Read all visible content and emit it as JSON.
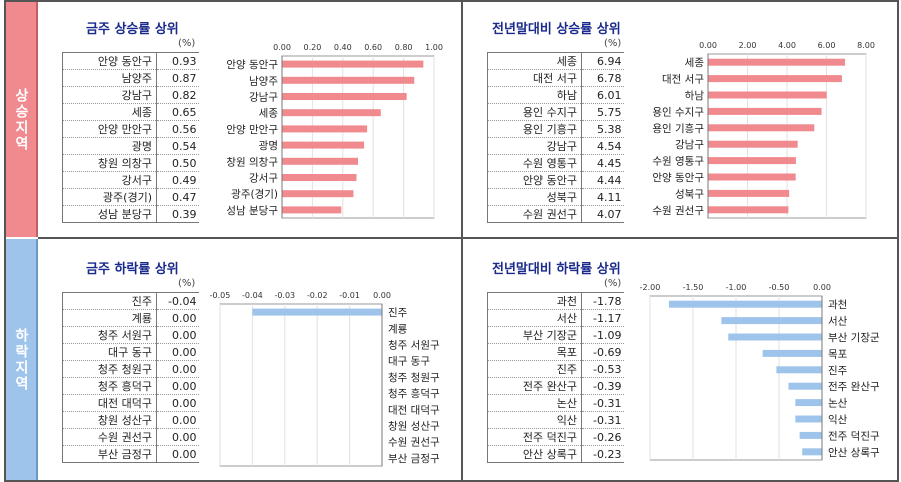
{
  "sections": {
    "rise_label": "상승지역",
    "fall_label": "하락지역"
  },
  "panels": {
    "weekly_rise": {
      "title": "금주 상승률 상위",
      "unit": "(%)",
      "rows": [
        {
          "name": "안양 동안구",
          "value": "0.93"
        },
        {
          "name": "남양주",
          "value": "0.87"
        },
        {
          "name": "강남구",
          "value": "0.82"
        },
        {
          "name": "세종",
          "value": "0.65"
        },
        {
          "name": "안양 만안구",
          "value": "0.56"
        },
        {
          "name": "광명",
          "value": "0.54"
        },
        {
          "name": "창원 의창구",
          "value": "0.50"
        },
        {
          "name": "강서구",
          "value": "0.49"
        },
        {
          "name": "광주(경기)",
          "value": "0.47"
        },
        {
          "name": "성남 분당구",
          "value": "0.39"
        }
      ]
    },
    "annual_rise": {
      "title": "전년말대비 상승률 상위",
      "unit": "(%)",
      "rows": [
        {
          "name": "세종",
          "value": "6.94"
        },
        {
          "name": "대전 서구",
          "value": "6.78"
        },
        {
          "name": "하남",
          "value": "6.01"
        },
        {
          "name": "용인 수지구",
          "value": "5.75"
        },
        {
          "name": "용인 기흥구",
          "value": "5.38"
        },
        {
          "name": "강남구",
          "value": "4.54"
        },
        {
          "name": "수원 영통구",
          "value": "4.45"
        },
        {
          "name": "안양 동안구",
          "value": "4.44"
        },
        {
          "name": "성북구",
          "value": "4.11"
        },
        {
          "name": "수원 권선구",
          "value": "4.07"
        }
      ]
    },
    "weekly_fall": {
      "title": "금주 하락률 상위",
      "unit": "(%)",
      "rows": [
        {
          "name": "진주",
          "value": "-0.04"
        },
        {
          "name": "계룡",
          "value": "0.00"
        },
        {
          "name": "청주 서원구",
          "value": "0.00"
        },
        {
          "name": "대구 동구",
          "value": "0.00"
        },
        {
          "name": "청주 청원구",
          "value": "0.00"
        },
        {
          "name": "청주 흥덕구",
          "value": "0.00"
        },
        {
          "name": "대전 대덕구",
          "value": "0.00"
        },
        {
          "name": "창원 성산구",
          "value": "0.00"
        },
        {
          "name": "수원 권선구",
          "value": "0.00"
        },
        {
          "name": "부산 금정구",
          "value": "0.00"
        }
      ]
    },
    "annual_fall": {
      "title": "전년말대비 하락률 상위",
      "unit": "(%)",
      "rows": [
        {
          "name": "과천",
          "value": "-1.78"
        },
        {
          "name": "서산",
          "value": "-1.17"
        },
        {
          "name": "부산 기장군",
          "value": "-1.09"
        },
        {
          "name": "목포",
          "value": "-0.69"
        },
        {
          "name": "진주",
          "value": "-0.53"
        },
        {
          "name": "전주 완산구",
          "value": "-0.39"
        },
        {
          "name": "논산",
          "value": "-0.31"
        },
        {
          "name": "익산",
          "value": "-0.31"
        },
        {
          "name": "전주 덕진구",
          "value": "-0.26"
        },
        {
          "name": "안산 상록구",
          "value": "-0.23"
        }
      ]
    }
  },
  "chart_data": [
    {
      "type": "bar",
      "id": "weekly_rise",
      "orientation": "horizontal",
      "categories": [
        "안양 동안구",
        "남양주",
        "강남구",
        "세종",
        "안양 만안구",
        "광명",
        "창원 의창구",
        "강서구",
        "광주(경기)",
        "성남 분당구"
      ],
      "values": [
        0.93,
        0.87,
        0.82,
        0.65,
        0.56,
        0.54,
        0.5,
        0.49,
        0.47,
        0.39
      ],
      "xlim": [
        0,
        1.0
      ],
      "ticks": [
        "0.00",
        "0.20",
        "0.40",
        "0.60",
        "0.80",
        "1.00"
      ],
      "color": "#f08a8f"
    },
    {
      "type": "bar",
      "id": "annual_rise",
      "orientation": "horizontal",
      "categories": [
        "세종",
        "대전 서구",
        "하남",
        "용인 수지구",
        "용인 기흥구",
        "강남구",
        "수원 영통구",
        "안양 동안구",
        "성북구",
        "수원 권선구"
      ],
      "values": [
        6.94,
        6.78,
        6.01,
        5.75,
        5.38,
        4.54,
        4.45,
        4.44,
        4.11,
        4.07
      ],
      "xlim": [
        0,
        8.0
      ],
      "ticks": [
        "0.00",
        "2.00",
        "4.00",
        "6.00",
        "8.00"
      ],
      "color": "#f08a8f"
    },
    {
      "type": "bar",
      "id": "weekly_fall",
      "orientation": "horizontal",
      "categories": [
        "진주",
        "계룡",
        "청주 서원구",
        "대구 동구",
        "청주 청원구",
        "청주 흥덕구",
        "대전 대덕구",
        "창원 성산구",
        "수원 권선구",
        "부산 금정구"
      ],
      "values": [
        -0.04,
        0,
        0,
        0,
        0,
        0,
        0,
        0,
        0,
        0
      ],
      "xlim": [
        -0.05,
        0.0
      ],
      "ticks": [
        "-0.05",
        "-0.04",
        "-0.03",
        "-0.02",
        "-0.01",
        "0.00"
      ],
      "color": "#9fc4ec"
    },
    {
      "type": "bar",
      "id": "annual_fall",
      "orientation": "horizontal",
      "categories": [
        "과천",
        "서산",
        "부산 기장군",
        "목포",
        "진주",
        "전주 완산구",
        "논산",
        "익산",
        "전주 덕진구",
        "안산 상록구"
      ],
      "values": [
        -1.78,
        -1.17,
        -1.09,
        -0.69,
        -0.53,
        -0.39,
        -0.31,
        -0.31,
        -0.26,
        -0.23
      ],
      "xlim": [
        -2.0,
        0.0
      ],
      "ticks": [
        "-2.00",
        "-1.50",
        "-1.00",
        "-0.50",
        "0.00"
      ],
      "color": "#9fc4ec"
    }
  ]
}
